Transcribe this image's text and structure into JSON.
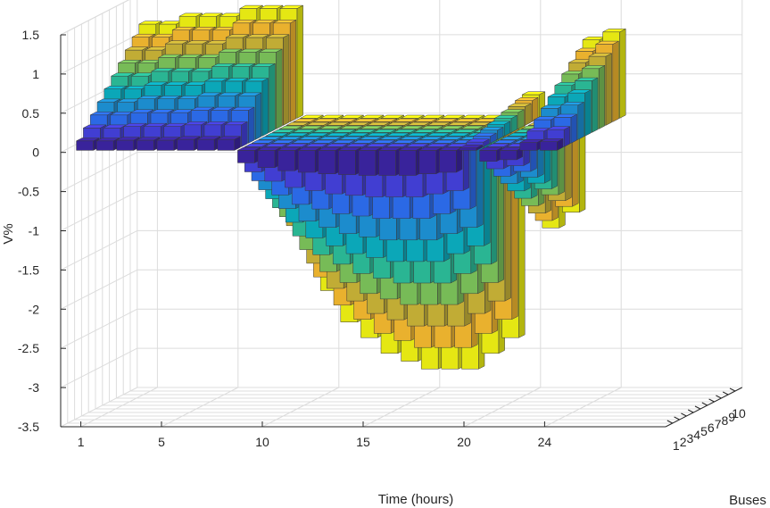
{
  "chart_data": {
    "type": "bar3",
    "title": "",
    "xlabel": "Time (hours)",
    "ylabel": "Buses",
    "zlabel": "V%",
    "x_ticks": [
      1,
      5,
      10,
      15,
      20,
      24
    ],
    "x_tick_labels": [
      "1",
      "5",
      "10",
      "15",
      "20",
      "24"
    ],
    "y_ticks": [
      1,
      2,
      3,
      4,
      5,
      6,
      7,
      8,
      9,
      10
    ],
    "y_tick_labels": [
      "1",
      "2",
      "3",
      "4",
      "5",
      "6",
      "7",
      "8",
      "9",
      "10"
    ],
    "z_ticks": [
      1.5,
      1,
      0.5,
      0,
      -0.5,
      -1,
      -1.5,
      -2,
      -2.5,
      -3,
      -3.5
    ],
    "z_tick_labels": [
      "1.5",
      "1",
      "0.5",
      "0",
      "-0.5",
      "-1",
      "-1.5",
      "-2",
      "-2.5",
      "-3",
      "-3.5"
    ],
    "xlim": [
      0,
      30
    ],
    "ylim": [
      0,
      11
    ],
    "zlim": [
      -3.5,
      1.5
    ],
    "grid": true,
    "colormap": [
      "#3e26a8",
      "#4743e4",
      "#2f72f9",
      "#1e98df",
      "#0cb5c8",
      "#2ec5a0",
      "#81cb5f",
      "#d2bb3a",
      "#fdc032",
      "#f9fb15"
    ],
    "hours": [
      1,
      2,
      3,
      4,
      5,
      6,
      7,
      8,
      9,
      10,
      11,
      12,
      13,
      14,
      15,
      16,
      17,
      18,
      19,
      20,
      21,
      22,
      23,
      24
    ],
    "bus10_profile": [
      1.2,
      1.2,
      1.3,
      1.3,
      1.3,
      1.4,
      1.4,
      1.4,
      -1.6,
      -2.2,
      -2.6,
      -2.8,
      -3.0,
      -3.1,
      -3.2,
      -3.2,
      -3.2,
      -3.0,
      -2.8,
      0.3,
      -1.4,
      -1.2,
      1.0,
      1.1
    ],
    "bus_scale": [
      0.1,
      0.2,
      0.3,
      0.4,
      0.5,
      0.6,
      0.7,
      0.8,
      0.9,
      1.0
    ]
  }
}
